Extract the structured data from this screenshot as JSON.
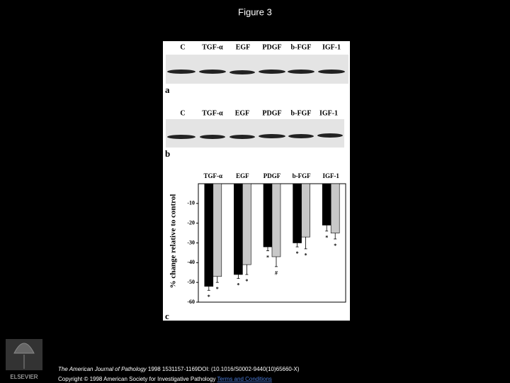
{
  "title": "Figure 3",
  "panels": {
    "a": {
      "letter": "a",
      "lanes": [
        "C",
        "TGF-α",
        "EGF",
        "PDGF",
        "b-FGF",
        "IGF-1"
      ]
    },
    "b": {
      "letter": "b",
      "lanes": [
        "C",
        "TGF-α",
        "EGF",
        "PDGF",
        "b-FGF",
        "IGF-1"
      ]
    }
  },
  "chart_data": {
    "type": "bar",
    "panel_label": "c",
    "y_label": "% change relative to control",
    "categories": [
      "TGF-α",
      "EGF",
      "PDGF",
      "b-FGF",
      "IGF-1"
    ],
    "series": [
      {
        "color": "#000000",
        "values": [
          -52,
          -46,
          -32,
          -30,
          -21
        ],
        "errors": [
          2,
          2,
          2,
          2,
          3
        ],
        "markers": [
          "*",
          "*",
          "*",
          "*",
          "*"
        ]
      },
      {
        "color": "#c8c8c8",
        "values": [
          -47,
          -41,
          -37,
          -27,
          -25
        ],
        "errors": [
          3,
          5,
          5,
          6,
          3
        ],
        "markers": [
          "*",
          "*",
          "#",
          "*",
          "*"
        ]
      }
    ],
    "ylim": [
      -60,
      0
    ],
    "yticks": [
      -10,
      -20,
      -30,
      -40,
      -50,
      -60
    ]
  },
  "footer": {
    "journal": "The American Journal of Pathology",
    "citation": "1998 1531157-1169DOI: (10.1016/S0002-9440(10)65660-X)",
    "copyright": "Copyright © 1998 American Society for Investigative Pathology",
    "link": "Terms and Conditions",
    "publisher": "ELSEVIER"
  }
}
